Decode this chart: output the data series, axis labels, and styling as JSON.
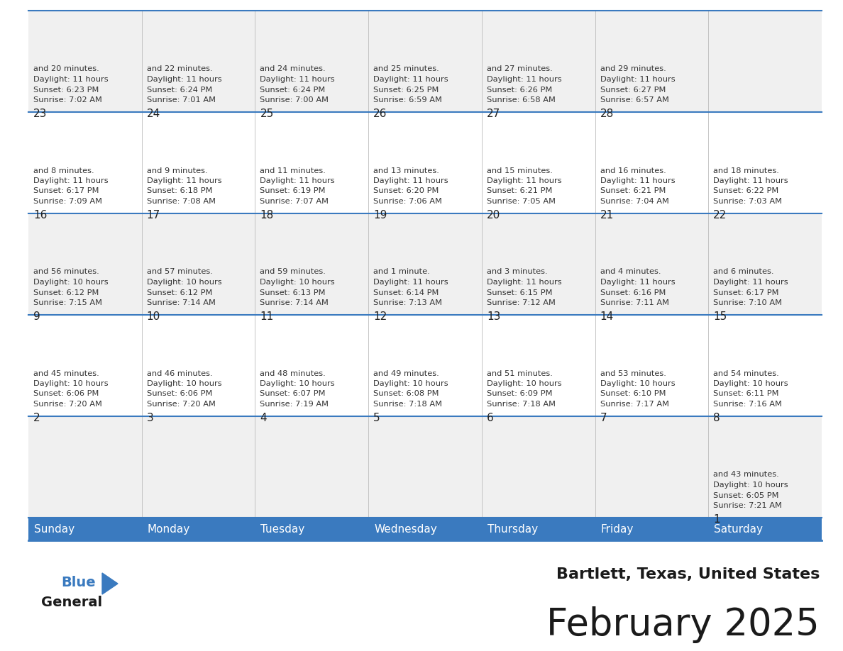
{
  "title": "February 2025",
  "subtitle": "Bartlett, Texas, United States",
  "header_color": "#3a7abf",
  "header_text_color": "#ffffff",
  "cell_bg_color": "#f0f0f0",
  "cell_bg_alt": "#ffffff",
  "grid_line_color": "#3a7abf",
  "text_color": "#333333",
  "day_headers": [
    "Sunday",
    "Monday",
    "Tuesday",
    "Wednesday",
    "Thursday",
    "Friday",
    "Saturday"
  ],
  "days": [
    {
      "day": 1,
      "col": 6,
      "row": 0,
      "sunrise": "7:21 AM",
      "sunset": "6:05 PM",
      "daylight_hours": 10,
      "daylight_minutes": 43
    },
    {
      "day": 2,
      "col": 0,
      "row": 1,
      "sunrise": "7:20 AM",
      "sunset": "6:06 PM",
      "daylight_hours": 10,
      "daylight_minutes": 45
    },
    {
      "day": 3,
      "col": 1,
      "row": 1,
      "sunrise": "7:20 AM",
      "sunset": "6:06 PM",
      "daylight_hours": 10,
      "daylight_minutes": 46
    },
    {
      "day": 4,
      "col": 2,
      "row": 1,
      "sunrise": "7:19 AM",
      "sunset": "6:07 PM",
      "daylight_hours": 10,
      "daylight_minutes": 48
    },
    {
      "day": 5,
      "col": 3,
      "row": 1,
      "sunrise": "7:18 AM",
      "sunset": "6:08 PM",
      "daylight_hours": 10,
      "daylight_minutes": 49
    },
    {
      "day": 6,
      "col": 4,
      "row": 1,
      "sunrise": "7:18 AM",
      "sunset": "6:09 PM",
      "daylight_hours": 10,
      "daylight_minutes": 51
    },
    {
      "day": 7,
      "col": 5,
      "row": 1,
      "sunrise": "7:17 AM",
      "sunset": "6:10 PM",
      "daylight_hours": 10,
      "daylight_minutes": 53
    },
    {
      "day": 8,
      "col": 6,
      "row": 1,
      "sunrise": "7:16 AM",
      "sunset": "6:11 PM",
      "daylight_hours": 10,
      "daylight_minutes": 54
    },
    {
      "day": 9,
      "col": 0,
      "row": 2,
      "sunrise": "7:15 AM",
      "sunset": "6:12 PM",
      "daylight_hours": 10,
      "daylight_minutes": 56
    },
    {
      "day": 10,
      "col": 1,
      "row": 2,
      "sunrise": "7:14 AM",
      "sunset": "6:12 PM",
      "daylight_hours": 10,
      "daylight_minutes": 57
    },
    {
      "day": 11,
      "col": 2,
      "row": 2,
      "sunrise": "7:14 AM",
      "sunset": "6:13 PM",
      "daylight_hours": 10,
      "daylight_minutes": 59
    },
    {
      "day": 12,
      "col": 3,
      "row": 2,
      "sunrise": "7:13 AM",
      "sunset": "6:14 PM",
      "daylight_hours": 11,
      "daylight_minutes": 1
    },
    {
      "day": 13,
      "col": 4,
      "row": 2,
      "sunrise": "7:12 AM",
      "sunset": "6:15 PM",
      "daylight_hours": 11,
      "daylight_minutes": 3
    },
    {
      "day": 14,
      "col": 5,
      "row": 2,
      "sunrise": "7:11 AM",
      "sunset": "6:16 PM",
      "daylight_hours": 11,
      "daylight_minutes": 4
    },
    {
      "day": 15,
      "col": 6,
      "row": 2,
      "sunrise": "7:10 AM",
      "sunset": "6:17 PM",
      "daylight_hours": 11,
      "daylight_minutes": 6
    },
    {
      "day": 16,
      "col": 0,
      "row": 3,
      "sunrise": "7:09 AM",
      "sunset": "6:17 PM",
      "daylight_hours": 11,
      "daylight_minutes": 8
    },
    {
      "day": 17,
      "col": 1,
      "row": 3,
      "sunrise": "7:08 AM",
      "sunset": "6:18 PM",
      "daylight_hours": 11,
      "daylight_minutes": 9
    },
    {
      "day": 18,
      "col": 2,
      "row": 3,
      "sunrise": "7:07 AM",
      "sunset": "6:19 PM",
      "daylight_hours": 11,
      "daylight_minutes": 11
    },
    {
      "day": 19,
      "col": 3,
      "row": 3,
      "sunrise": "7:06 AM",
      "sunset": "6:20 PM",
      "daylight_hours": 11,
      "daylight_minutes": 13
    },
    {
      "day": 20,
      "col": 4,
      "row": 3,
      "sunrise": "7:05 AM",
      "sunset": "6:21 PM",
      "daylight_hours": 11,
      "daylight_minutes": 15
    },
    {
      "day": 21,
      "col": 5,
      "row": 3,
      "sunrise": "7:04 AM",
      "sunset": "6:21 PM",
      "daylight_hours": 11,
      "daylight_minutes": 16
    },
    {
      "day": 22,
      "col": 6,
      "row": 3,
      "sunrise": "7:03 AM",
      "sunset": "6:22 PM",
      "daylight_hours": 11,
      "daylight_minutes": 18
    },
    {
      "day": 23,
      "col": 0,
      "row": 4,
      "sunrise": "7:02 AM",
      "sunset": "6:23 PM",
      "daylight_hours": 11,
      "daylight_minutes": 20
    },
    {
      "day": 24,
      "col": 1,
      "row": 4,
      "sunrise": "7:01 AM",
      "sunset": "6:24 PM",
      "daylight_hours": 11,
      "daylight_minutes": 22
    },
    {
      "day": 25,
      "col": 2,
      "row": 4,
      "sunrise": "7:00 AM",
      "sunset": "6:24 PM",
      "daylight_hours": 11,
      "daylight_minutes": 24
    },
    {
      "day": 26,
      "col": 3,
      "row": 4,
      "sunrise": "6:59 AM",
      "sunset": "6:25 PM",
      "daylight_hours": 11,
      "daylight_minutes": 25
    },
    {
      "day": 27,
      "col": 4,
      "row": 4,
      "sunrise": "6:58 AM",
      "sunset": "6:26 PM",
      "daylight_hours": 11,
      "daylight_minutes": 27
    },
    {
      "day": 28,
      "col": 5,
      "row": 4,
      "sunrise": "6:57 AM",
      "sunset": "6:27 PM",
      "daylight_hours": 11,
      "daylight_minutes": 29
    }
  ],
  "num_rows": 5,
  "num_cols": 7,
  "logo_color_triangle": "#3a7abf",
  "logo_color_general": "#1a1a1a",
  "logo_color_blue": "#3a7abf"
}
